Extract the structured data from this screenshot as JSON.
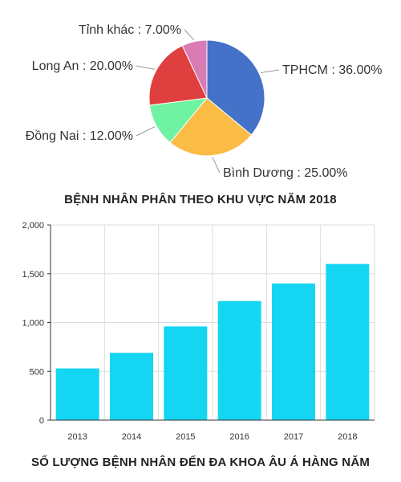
{
  "chart_data": [
    {
      "type": "pie",
      "title": "BỆNH NHÂN PHÂN THEO KHU VỰC NĂM 2018",
      "slices": [
        {
          "label": "TPHCM : 36.00%",
          "value": 36,
          "color": "#4472c9"
        },
        {
          "label": "Bình Dương : 25.00%",
          "value": 25,
          "color": "#fbbc45"
        },
        {
          "label": "Đồng Nai : 12.00%",
          "value": 12,
          "color": "#6ff2a2"
        },
        {
          "label": "Long An : 20.00%",
          "value": 20,
          "color": "#e03f3f"
        },
        {
          "label": "Tỉnh khác : 7.00%",
          "value": 7,
          "color": "#d97cb4"
        }
      ]
    },
    {
      "type": "bar",
      "title": "SỐ LƯỢNG BỆNH NHÂN ĐẾN ĐA KHOA ÂU Á HÀNG NĂM",
      "categories": [
        "2013",
        "2014",
        "2015",
        "2016",
        "2017",
        "2018"
      ],
      "values": [
        530,
        690,
        960,
        1220,
        1400,
        1600
      ],
      "color": "#15d6f2",
      "ylim": [
        0,
        2000
      ],
      "yticks": [
        "0",
        "500",
        "1,000",
        "1,500",
        "2,000"
      ],
      "ytick_values": [
        0,
        500,
        1000,
        1500,
        2000
      ],
      "grid": true,
      "xlabel": "",
      "ylabel": ""
    }
  ]
}
